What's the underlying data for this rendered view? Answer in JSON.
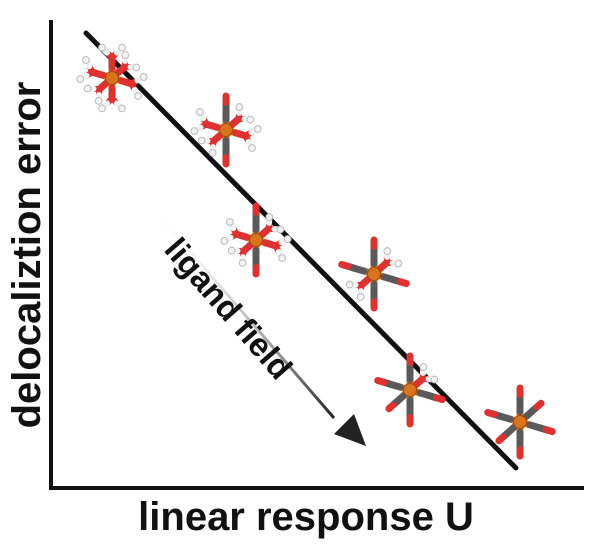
{
  "figure": {
    "x_axis_label": "linear response U",
    "y_axis_label": "delocaliztion error",
    "arrow_label": "ligand field"
  },
  "colors": {
    "background": "#ffffff",
    "axes": "#111111",
    "trend_line": "#111111",
    "iron_atom": "#d9741c",
    "oxygen": "#e03030",
    "carbon": "#5a5a5a",
    "hydrogen": "#f2f2f2"
  },
  "complexes": [
    {
      "name": "Fe(H2O)6",
      "ligand_type": "water",
      "water_ligands": 6,
      "co_ligands": 0
    },
    {
      "name": "Fe(H2O)4(CO)2",
      "ligand_type": "mixed",
      "water_ligands": 4,
      "co_ligands": 2
    },
    {
      "name": "Fe(H2O)4(CO)2 isomer",
      "ligand_type": "mixed",
      "water_ligands": 4,
      "co_ligands": 2
    },
    {
      "name": "Fe(H2O)2(CO)4",
      "ligand_type": "mixed",
      "water_ligands": 2,
      "co_ligands": 4
    },
    {
      "name": "Fe(H2O)(CO)5",
      "ligand_type": "mixed",
      "water_ligands": 1,
      "co_ligands": 5
    },
    {
      "name": "Fe(CO)6",
      "ligand_type": "carbonyl",
      "water_ligands": 0,
      "co_ligands": 6
    }
  ]
}
